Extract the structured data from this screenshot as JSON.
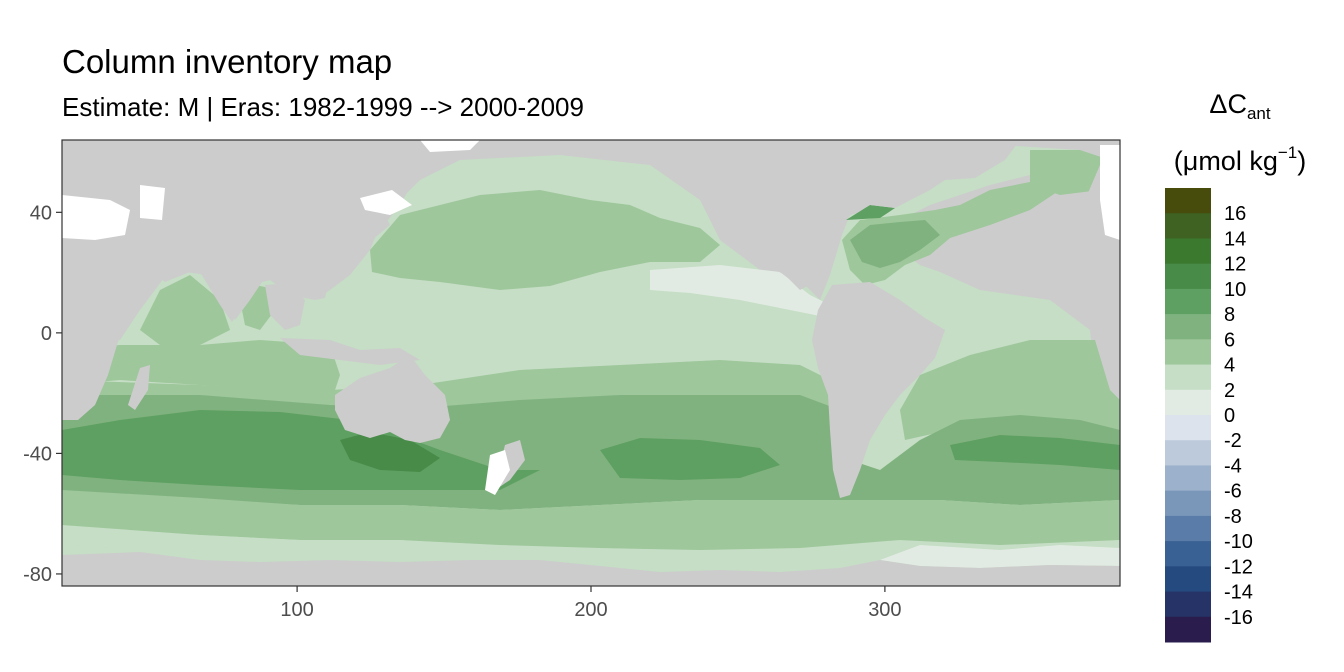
{
  "title": "Column inventory map",
  "subtitle": "Estimate: M  | Eras: 1982-1999 --> 2000-2009",
  "legend": {
    "title_symbol": "ΔC",
    "title_subscript": "ant",
    "unit_prefix": "(μmol kg",
    "unit_superscript": "−1",
    "unit_suffix": ")",
    "levels": [
      "16",
      "14",
      "12",
      "10",
      "8",
      "6",
      "4",
      "2",
      "0",
      "-2",
      "-4",
      "-6",
      "-8",
      "-10",
      "-12",
      "-14",
      "-16"
    ],
    "colors": [
      "#474b0c",
      "#3f6122",
      "#3b792f",
      "#488a47",
      "#5ea062",
      "#80b27f",
      "#9ec79b",
      "#c5dec5",
      "#e2ebe3",
      "#dde3ec",
      "#bccadc",
      "#9cb1cb",
      "#7a97ba",
      "#5a7ca8",
      "#3a6194",
      "#244a80",
      "#263366",
      "#2a1d4e"
    ]
  },
  "map_data": {
    "type": "filled-contour-map",
    "x_axis": {
      "ticks": [
        100,
        200,
        300
      ],
      "range": [
        20,
        380
      ]
    },
    "y_axis": {
      "ticks": [
        40,
        0,
        -40,
        -80
      ],
      "range": [
        -84,
        64
      ]
    },
    "land_color": "#cccccc",
    "nodata_color": "#ffffff"
  }
}
